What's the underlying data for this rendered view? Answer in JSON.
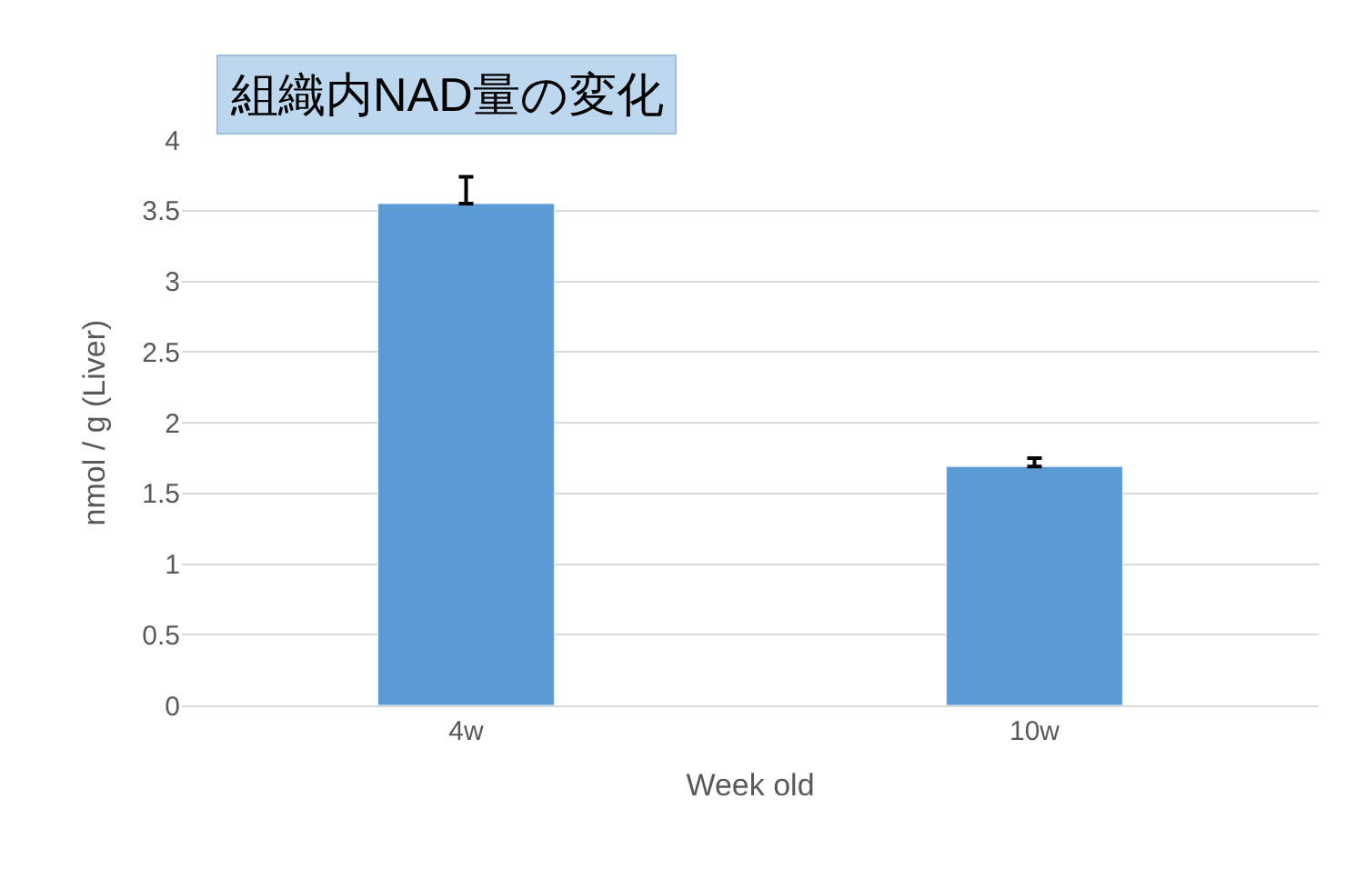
{
  "chart_data": {
    "type": "bar",
    "title": "組織内NAD量の変化",
    "xlabel": "Week old",
    "ylabel": "nmol / g (Liver)",
    "categories": [
      "4w",
      "10w"
    ],
    "series": [
      {
        "color": "#5b9bd5",
        "values": [
          3.55,
          1.69
        ],
        "errors": [
          [
            3.55,
            3.74
          ],
          [
            1.69,
            1.75
          ]
        ]
      }
    ],
    "ylim": [
      0,
      4
    ],
    "yticks": [
      0,
      0.5,
      1,
      1.5,
      2,
      2.5,
      3,
      3.5,
      4
    ],
    "grid": "y"
  }
}
